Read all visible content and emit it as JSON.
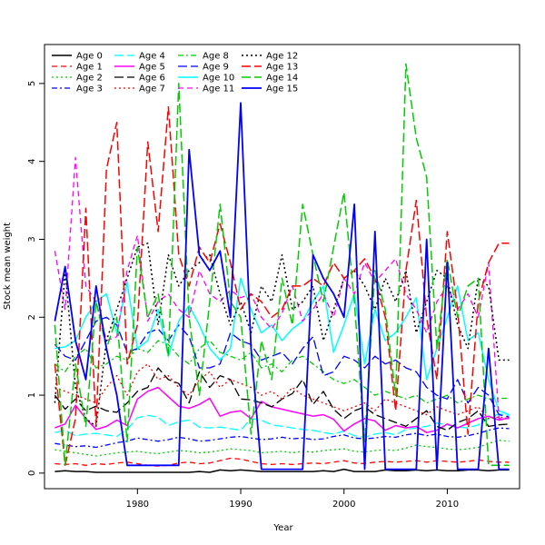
{
  "chart_data": {
    "type": "line",
    "title": "",
    "xlabel": "Year",
    "ylabel": "Stock mean weight",
    "xlim": [
      1971,
      2017
    ],
    "ylim": [
      -0.2,
      5.5
    ],
    "x_ticks": [
      1980,
      1990,
      2000,
      2010
    ],
    "y_ticks": [
      0,
      1,
      2,
      3,
      4,
      5
    ],
    "x": [
      1972,
      1973,
      1974,
      1975,
      1976,
      1977,
      1978,
      1979,
      1980,
      1981,
      1982,
      1983,
      1984,
      1985,
      1986,
      1987,
      1988,
      1989,
      1990,
      1991,
      1992,
      1993,
      1994,
      1995,
      1996,
      1997,
      1998,
      1999,
      2000,
      2001,
      2002,
      2003,
      2004,
      2005,
      2006,
      2007,
      2008,
      2009,
      2010,
      2011,
      2012,
      2013,
      2014,
      2015,
      2016
    ],
    "legend_position": "top-left",
    "grid": false,
    "series": [
      {
        "name": "Age 0",
        "color": "#000000",
        "dash": "solid",
        "width": 1.5,
        "values": [
          0.02,
          0.03,
          0.02,
          0.02,
          0.01,
          0.01,
          0.01,
          0.01,
          0.01,
          0.01,
          0.01,
          0.01,
          0.01,
          0.01,
          0.02,
          0.01,
          0.04,
          0.03,
          0.04,
          0.03,
          0.02,
          0.02,
          0.02,
          0.02,
          0.02,
          0.02,
          0.03,
          0.02,
          0.05,
          0.02,
          0.02,
          0.02,
          0.04,
          0.03,
          0.03,
          0.04,
          0.03,
          0.04,
          0.03,
          0.03,
          0.04,
          0.04,
          0.03,
          0.04,
          0.04
        ]
      },
      {
        "name": "Age 1",
        "color": "#ff0000",
        "dash": "dashed",
        "width": 1.3,
        "values": [
          0.12,
          0.11,
          0.12,
          0.1,
          0.12,
          0.11,
          0.13,
          0.14,
          0.12,
          0.1,
          0.09,
          0.1,
          0.13,
          0.14,
          0.12,
          0.13,
          0.16,
          0.19,
          0.18,
          0.15,
          0.12,
          0.11,
          0.12,
          0.11,
          0.12,
          0.13,
          0.12,
          0.14,
          0.16,
          0.13,
          0.12,
          0.14,
          0.15,
          0.14,
          0.15,
          0.16,
          0.14,
          0.16,
          0.15,
          0.14,
          0.15,
          0.17,
          0.15,
          0.14,
          0.14
        ]
      },
      {
        "name": "Age 2",
        "color": "#00cd00",
        "dash": "dotted",
        "width": 1.3,
        "values": [
          0.3,
          0.28,
          0.26,
          0.24,
          0.22,
          0.24,
          0.26,
          0.27,
          0.28,
          0.26,
          0.25,
          0.27,
          0.29,
          0.28,
          0.26,
          0.27,
          0.29,
          0.31,
          0.3,
          0.29,
          0.26,
          0.27,
          0.28,
          0.26,
          0.28,
          0.27,
          0.29,
          0.3,
          0.31,
          0.28,
          0.27,
          0.29,
          0.3,
          0.29,
          0.32,
          0.36,
          0.34,
          0.33,
          0.31,
          0.3,
          0.31,
          0.33,
          0.38,
          0.42,
          0.41
        ]
      },
      {
        "name": "Age 3",
        "color": "#0000ff",
        "dash": "dashdot",
        "width": 1.3,
        "values": [
          0.38,
          0.36,
          0.34,
          0.35,
          0.33,
          0.36,
          0.39,
          0.41,
          0.45,
          0.43,
          0.41,
          0.43,
          0.46,
          0.44,
          0.41,
          0.42,
          0.44,
          0.46,
          0.47,
          0.45,
          0.43,
          0.44,
          0.46,
          0.44,
          0.45,
          0.43,
          0.44,
          0.47,
          0.49,
          0.45,
          0.44,
          0.45,
          0.47,
          0.46,
          0.49,
          0.51,
          0.48,
          0.5,
          0.47,
          0.46,
          0.48,
          0.51,
          0.55,
          0.58,
          0.57
        ]
      },
      {
        "name": "Age 4",
        "color": "#00ffff",
        "dash": "longdash",
        "width": 1.3,
        "values": [
          0.52,
          0.55,
          0.48,
          0.5,
          0.51,
          0.49,
          0.47,
          0.56,
          0.71,
          0.74,
          0.72,
          0.61,
          0.66,
          0.68,
          0.59,
          0.58,
          0.59,
          0.57,
          0.55,
          0.7,
          0.68,
          0.62,
          0.6,
          0.58,
          0.56,
          0.55,
          0.52,
          0.5,
          0.54,
          0.48,
          0.46,
          0.5,
          0.52,
          0.49,
          0.56,
          0.58,
          0.6,
          0.64,
          0.62,
          0.59,
          0.58,
          0.62,
          0.7,
          0.76,
          0.74
        ]
      },
      {
        "name": "Age 5",
        "color": "#ff00ff",
        "dash": "solid",
        "width": 1.5,
        "values": [
          0.58,
          0.63,
          0.87,
          0.7,
          0.56,
          0.6,
          0.68,
          0.61,
          0.95,
          1.05,
          1.1,
          0.98,
          0.86,
          0.83,
          0.88,
          0.96,
          0.73,
          0.78,
          0.8,
          0.7,
          0.92,
          0.85,
          0.82,
          0.79,
          0.76,
          0.73,
          0.75,
          0.69,
          0.54,
          0.63,
          0.7,
          0.67,
          0.55,
          0.61,
          0.58,
          0.6,
          0.52,
          0.55,
          0.63,
          0.58,
          0.64,
          0.7,
          0.73,
          0.68,
          0.71
        ]
      },
      {
        "name": "Age 6",
        "color": "#000000",
        "dash": "longdash",
        "width": 1.3,
        "values": [
          1.0,
          0.82,
          0.95,
          0.8,
          0.86,
          0.8,
          0.78,
          0.9,
          1.05,
          1.1,
          1.35,
          1.2,
          1.15,
          0.9,
          1.3,
          1.1,
          1.25,
          1.2,
          0.95,
          0.94,
          0.9,
          0.85,
          0.95,
          1.02,
          1.2,
          0.88,
          1.05,
          0.82,
          0.7,
          0.8,
          0.85,
          0.75,
          0.7,
          0.65,
          0.6,
          0.7,
          0.8,
          0.6,
          0.55,
          0.65,
          0.7,
          0.8,
          0.6,
          0.62,
          0.63
        ]
      },
      {
        "name": "Age 7",
        "color": "#ff0000",
        "dash": "dotted",
        "width": 1.3,
        "values": [
          1.1,
          1.05,
          1.0,
          0.95,
          0.9,
          1.1,
          1.25,
          1.0,
          1.3,
          1.4,
          1.2,
          1.25,
          1.1,
          1.0,
          1.2,
          1.3,
          1.1,
          1.2,
          1.15,
          1.1,
          1.0,
          1.05,
          0.95,
          1.1,
          1.0,
          0.95,
          0.9,
          0.85,
          0.8,
          0.85,
          0.9,
          0.8,
          0.95,
          0.9,
          0.85,
          0.8,
          0.75,
          0.85,
          0.8,
          0.75,
          0.8,
          0.85,
          0.7,
          0.72,
          0.7
        ]
      },
      {
        "name": "Age 8",
        "color": "#00cd00",
        "dash": "dashdot",
        "width": 1.3,
        "values": [
          1.4,
          1.3,
          1.5,
          1.6,
          1.35,
          1.4,
          1.5,
          1.45,
          1.6,
          1.55,
          1.7,
          1.65,
          1.5,
          1.4,
          1.6,
          1.7,
          1.55,
          1.5,
          1.45,
          1.55,
          1.35,
          1.4,
          1.3,
          1.45,
          1.5,
          1.4,
          1.3,
          1.2,
          1.15,
          1.2,
          1.1,
          1.0,
          1.05,
          1.0,
          0.95,
          1.0,
          0.9,
          0.95,
          1.0,
          0.9,
          0.95,
          1.0,
          0.95,
          0.96,
          0.96
        ]
      },
      {
        "name": "Age 9",
        "color": "#0000ff",
        "dash": "longdash",
        "width": 1.3,
        "values": [
          1.65,
          1.5,
          1.45,
          1.7,
          1.95,
          2.0,
          1.9,
          1.55,
          1.6,
          1.8,
          1.85,
          1.7,
          1.9,
          1.75,
          1.35,
          1.35,
          1.4,
          1.8,
          1.7,
          1.65,
          1.45,
          1.5,
          1.55,
          1.4,
          1.6,
          1.75,
          1.25,
          1.3,
          1.5,
          1.45,
          1.35,
          1.5,
          1.4,
          1.45,
          1.35,
          1.3,
          1.1,
          1.0,
          0.95,
          1.2,
          0.9,
          1.1,
          1.0,
          0.75,
          0.72
        ]
      },
      {
        "name": "Age 10",
        "color": "#00ffff",
        "dash": "solid",
        "width": 1.5,
        "values": [
          1.6,
          1.62,
          1.7,
          2.0,
          2.2,
          2.3,
          1.8,
          2.45,
          1.6,
          1.7,
          2.1,
          1.5,
          1.95,
          2.15,
          1.9,
          1.6,
          1.45,
          1.6,
          2.5,
          2.1,
          1.8,
          1.9,
          1.7,
          1.85,
          1.95,
          2.2,
          2.4,
          1.55,
          1.9,
          2.3,
          1.4,
          2.1,
          1.7,
          1.8,
          2.0,
          2.25,
          1.2,
          1.6,
          2.0,
          2.4,
          1.7,
          1.8,
          1.2,
          0.8,
          0.75
        ]
      },
      {
        "name": "Age 11",
        "color": "#ff00ff",
        "dash": "dashed",
        "width": 1.3,
        "values": [
          2.85,
          2.1,
          4.05,
          2.4,
          2.2,
          1.7,
          1.75,
          2.6,
          3.05,
          1.95,
          2.2,
          2.3,
          2.1,
          2.0,
          2.6,
          2.3,
          2.2,
          2.35,
          2.25,
          2.3,
          2.0,
          1.85,
          2.05,
          2.4,
          1.95,
          2.1,
          2.3,
          2.0,
          2.5,
          2.3,
          2.7,
          2.45,
          2.6,
          2.75,
          2.3,
          2.1,
          1.8,
          2.2,
          2.4,
          2.1,
          2.3,
          2.0,
          2.7,
          0.7,
          0.7
        ]
      },
      {
        "name": "Age 12",
        "color": "#000000",
        "dash": "dotted",
        "width": 1.5,
        "values": [
          0.9,
          2.6,
          1.1,
          0.7,
          0.6,
          1.7,
          2.1,
          2.5,
          2.9,
          2.95,
          1.9,
          2.8,
          2.4,
          2.6,
          2.7,
          2.8,
          2.3,
          1.9,
          2.2,
          1.8,
          2.4,
          2.2,
          2.8,
          2.1,
          2.2,
          2.4,
          1.7,
          2.1,
          2.5,
          2.6,
          2.4,
          2.1,
          2.5,
          2.2,
          2.6,
          1.8,
          2.2,
          2.6,
          2.5,
          1.9,
          1.6,
          2.5,
          2.4,
          1.45,
          1.45
        ]
      },
      {
        "name": "Age 13",
        "color": "#ff0000",
        "dash": "longdash",
        "width": 1.5,
        "values": [
          1.4,
          0.1,
          0.7,
          3.4,
          0.6,
          3.9,
          4.5,
          1.4,
          1.9,
          4.25,
          3.1,
          4.7,
          2.8,
          2.4,
          2.9,
          2.7,
          3.2,
          2.7,
          2.1,
          2.3,
          2.2,
          2.0,
          2.1,
          2.4,
          2.4,
          2.5,
          2.4,
          2.7,
          2.5,
          2.6,
          2.75,
          2.5,
          2.0,
          0.8,
          2.6,
          3.5,
          2.0,
          1.2,
          3.1,
          2.1,
          0.5,
          2.2,
          2.7,
          2.95,
          2.95
        ]
      },
      {
        "name": "Age 14",
        "color": "#00cd00",
        "dash": "longdash",
        "width": 1.5,
        "values": [
          1.9,
          0.1,
          1.4,
          0.6,
          2.2,
          1.6,
          2.0,
          0.4,
          2.9,
          2.0,
          2.3,
          1.5,
          5.0,
          2.0,
          1.0,
          2.2,
          3.45,
          2.2,
          2.0,
          0.5,
          1.7,
          1.2,
          2.5,
          1.9,
          3.45,
          2.8,
          2.2,
          2.9,
          3.6,
          2.2,
          0.4,
          2.6,
          2.1,
          1.0,
          5.25,
          4.3,
          3.8,
          1.6,
          2.75,
          2.0,
          2.4,
          2.5,
          0.1,
          0.1,
          0.1
        ]
      },
      {
        "name": "Age 15",
        "color": "#0000ff",
        "dash": "solid",
        "width": 1.8,
        "values": [
          1.95,
          2.65,
          1.7,
          1.2,
          2.4,
          1.6,
          1.0,
          0.1,
          0.1,
          0.1,
          0.1,
          0.1,
          0.1,
          4.15,
          2.8,
          2.6,
          2.85,
          2.0,
          4.75,
          1.6,
          0.05,
          0.05,
          0.05,
          0.05,
          0.05,
          2.8,
          2.5,
          2.3,
          2.0,
          3.45,
          0.05,
          3.1,
          0.05,
          0.05,
          0.05,
          0.05,
          3.0,
          0.05,
          2.7,
          0.05,
          0.05,
          0.05,
          1.6,
          0.05,
          0.05
        ]
      }
    ]
  }
}
